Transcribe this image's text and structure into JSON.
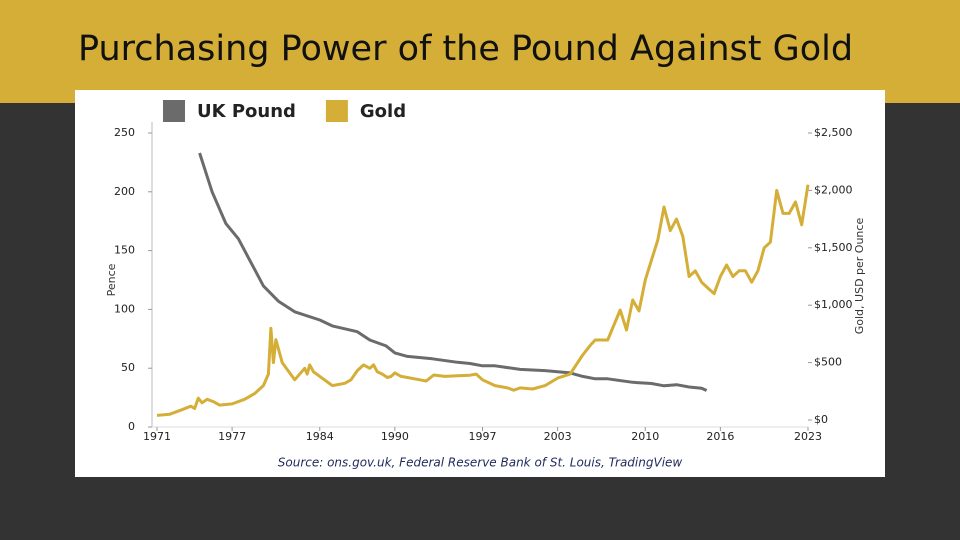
{
  "chart_data": {
    "type": "line",
    "title": "Purchasing Power of the Pound Against Gold",
    "source": "Source: ons.gov.uk, Federal Reserve Bank of St. Louis, TradingView",
    "y_label": "Pence",
    "y2_label": "Gold, USD per Ounce",
    "xlim": [
      1971,
      2023
    ],
    "xticks": [
      1971,
      1977,
      1984,
      1990,
      1997,
      2003,
      2010,
      2016,
      2023
    ],
    "ylim": [
      0,
      250
    ],
    "yticks": [
      0,
      50,
      100,
      150,
      200,
      250
    ],
    "y2lim": [
      0,
      2500
    ],
    "y2ticks": [
      {
        "value": 0,
        "label": "$0"
      },
      {
        "value": 500,
        "label": "$500"
      },
      {
        "value": 1000,
        "label": "$1,000"
      },
      {
        "value": 1500,
        "label": "$1,500"
      },
      {
        "value": 2000,
        "label": "$2,000"
      },
      {
        "value": 2500,
        "label": "$2,500"
      }
    ],
    "legend": "top",
    "series": [
      {
        "name": "UK Pound",
        "color": "#6b6b6b",
        "x": [
          1974.4,
          1975.4,
          1976.5,
          1977.5,
          1978.5,
          1979.5,
          1980.7,
          1982,
          1984,
          1985,
          1987,
          1988,
          1989.3,
          1990,
          1991,
          1993,
          1995,
          1996,
          1997,
          1998,
          2000,
          2002,
          2004,
          2005,
          2006,
          2007,
          2009,
          2010.5,
          2011.5,
          2012.5,
          2013.5,
          2014.5,
          2014.9
        ],
        "values": [
          233,
          200,
          173,
          160,
          140,
          120,
          107,
          98,
          91,
          86,
          81,
          74,
          69,
          63,
          60,
          58,
          55,
          54,
          52,
          52,
          49,
          48,
          46,
          43,
          41,
          41,
          38,
          37,
          35,
          36,
          34,
          33,
          31
        ]
      },
      {
        "name": "Gold",
        "color": "#d4ae36",
        "axis": "y2",
        "x": [
          1971,
          1972,
          1973,
          1973.7,
          1974,
          1974.3,
          1974.6,
          1975,
          1975.5,
          1976,
          1977,
          1978,
          1978.8,
          1979.5,
          1979.9,
          1980.1,
          1980.3,
          1980.5,
          1981,
          1982,
          1982.8,
          1983,
          1983.2,
          1983.5,
          1984,
          1985,
          1986,
          1986.5,
          1987,
          1987.5,
          1988,
          1988.3,
          1988.6,
          1989,
          1989.4,
          1989.7,
          1990,
          1990.5,
          1991,
          1992,
          1992.5,
          1993.1,
          1994,
          1995,
          1996,
          1996.5,
          1997,
          1998,
          1999,
          1999.5,
          2000,
          2001,
          2002,
          2003,
          2004,
          2005,
          2005.6,
          2006,
          2007,
          2008,
          2008.5,
          2009,
          2009.5,
          2010,
          2010.5,
          2011,
          2011.5,
          2012,
          2012.5,
          2013,
          2013.5,
          2014,
          2014.5,
          2015,
          2015.5,
          2016,
          2016.5,
          2017,
          2017.5,
          2018,
          2018.5,
          2019,
          2019.5,
          2020,
          2020.5,
          2021,
          2021.5,
          2022,
          2022.5,
          2023
        ],
        "values": [
          40,
          50,
          90,
          120,
          100,
          190,
          150,
          180,
          160,
          130,
          140,
          180,
          230,
          300,
          400,
          800,
          500,
          700,
          500,
          350,
          450,
          400,
          480,
          420,
          380,
          300,
          320,
          350,
          430,
          480,
          450,
          480,
          420,
          400,
          370,
          380,
          410,
          380,
          370,
          350,
          340,
          392,
          380,
          385,
          390,
          400,
          350,
          300,
          280,
          260,
          280,
          270,
          300,
          365,
          400,
          566,
          650,
          697,
          697,
          958,
          784,
          1045,
          950,
          1220,
          1394,
          1568,
          1855,
          1650,
          1750,
          1600,
          1250,
          1300,
          1200,
          1150,
          1100,
          1250,
          1350,
          1250,
          1300,
          1300,
          1200,
          1300,
          1500,
          1550,
          2000,
          1800,
          1800,
          1900,
          1700,
          2050
        ]
      }
    ]
  }
}
